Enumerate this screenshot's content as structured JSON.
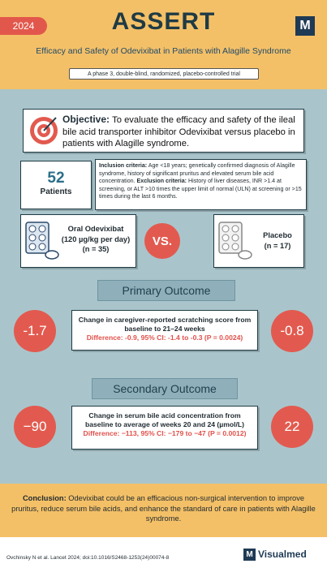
{
  "header": {
    "year": "2024",
    "title": "ASSERT",
    "logo": "M",
    "subtitle": "Efficacy and Safety of Odevixibat in Patients with Alagille Syndrome",
    "design": "A phase 3, double-blind, randomized, placebo-controlled trial"
  },
  "objective": {
    "label": "Objective:",
    "text": "To evaluate the efficacy and safety of the ileal bile acid transporter inhibitor Odevixibat versus placebo in patients with Alagille syndrome."
  },
  "patients": {
    "count": "52",
    "label": "Patients"
  },
  "criteria": {
    "inclusion_label": "Inclusion criteria:",
    "inclusion_text": "Age <18 years; genetically confirmed diagnosis of Alagille syndrome, history of significant pruritus and elevated serum bile acid concentration.",
    "exclusion_label": "Exclusion criteria:",
    "exclusion_text": "History of liver diseases, INR >1.4 at screening, or ALT >10 times the upper limit of normal (ULN) at screening or >15 times during the last 6 months."
  },
  "arms": [
    {
      "name": "Oral Odevixibat",
      "dose": "(120 µg/kg per day)",
      "n": "(n = 35)"
    },
    {
      "name": "Placebo",
      "n": "(n = 17)"
    }
  ],
  "vs": "VS.",
  "outcomes": [
    {
      "heading": "Primary Outcome",
      "description": "Change in caregiver-reported scratching score from baseline to 21–24 weeks",
      "difference": "Difference: -0.9, 95% CI: -1.4 to -0.3 (P = 0.0024)",
      "odevixibat": "-1.7",
      "placebo": "-0.8"
    },
    {
      "heading": "Secondary Outcome",
      "description": "Change in serum bile acid concentration from baseline to average of weeks 20 and 24 (µmol/L)",
      "difference": "Difference: −113, 95% CI: −179 to −47 (P = 0.0012)",
      "odevixibat": "−90",
      "placebo": "22"
    }
  ],
  "conclusion": {
    "label": "Conclusion:",
    "text": "Odevixibat could be an efficacious non-surgical intervention to improve pruritus, reduce serum bile acids, and enhance the standard of care in patients with Alagille syndrome."
  },
  "footer": {
    "citation": "Ovchinsky N et al. Lancet 2024; doi:10.1016/S2468-1253(24)00074-8",
    "brand_logo": "M",
    "brand": "Visualmed"
  }
}
